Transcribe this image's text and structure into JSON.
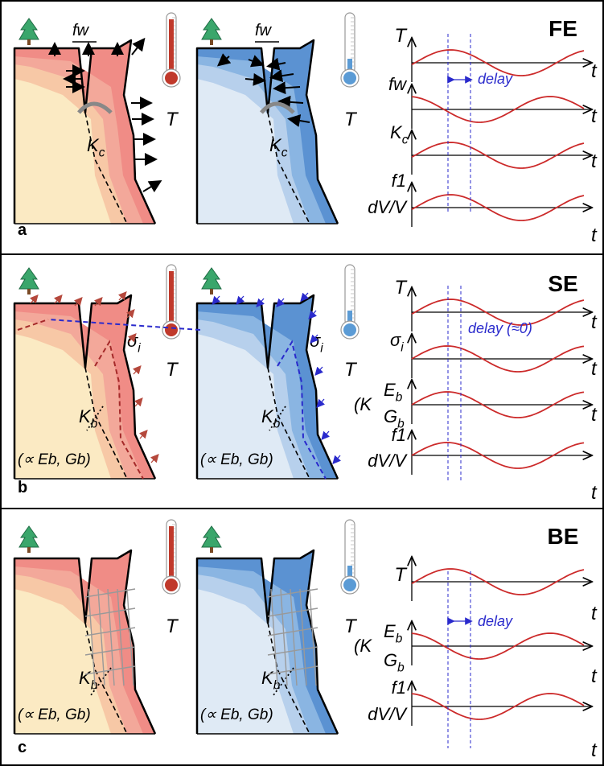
{
  "colors": {
    "warm": [
      "#fbeac3",
      "#f7c8a6",
      "#f3a89a",
      "#f08c86"
    ],
    "cold": [
      "#dfeaf5",
      "#b7d0ec",
      "#8ab5e2",
      "#5b92d2"
    ],
    "curve": "#cc2a2a",
    "marker": "#2a2acc",
    "thermo_hot": "#c0392b",
    "thermo_cold": "#5b9bd5",
    "tree": "#3aa66b"
  },
  "panels": [
    {
      "letter": "a",
      "title": "FE",
      "sketch_labels": {
        "width": "fw",
        "coupling": "Kc",
        "coupling_sub": "c",
        "temperature": "T"
      },
      "graphs": [
        {
          "label": "T",
          "axis": "t",
          "phase": "peak"
        },
        {
          "label": "fw",
          "axis": "t",
          "phase": "trough"
        },
        {
          "label": "Kc",
          "axis": "t",
          "phase": "peak"
        },
        {
          "label": "f1 / dV/V",
          "axis": "t",
          "phase": "peak"
        }
      ],
      "delay_label": "delay"
    },
    {
      "letter": "b",
      "title": "SE",
      "sketch_labels": {
        "stress": "σi",
        "coupling": "Kb",
        "coupling_sub": "b",
        "prop": "(∝ Eb, Gb)",
        "temperature": "T"
      },
      "graphs": [
        {
          "label": "T",
          "axis": "t",
          "phase": "peak"
        },
        {
          "label": "σi",
          "axis": "t",
          "phase": "peak"
        },
        {
          "label": "(Kb) Eb / Gb",
          "axis": "t",
          "phase": "peak"
        },
        {
          "label": "f1 / dV/V",
          "axis": "t",
          "phase": "peak"
        }
      ],
      "delay_label": "delay (≈0)"
    },
    {
      "letter": "c",
      "title": "BE",
      "sketch_labels": {
        "coupling": "Kb",
        "coupling_sub": "b",
        "prop": "(∝ Eb, Gb)",
        "temperature": "T"
      },
      "graphs": [
        {
          "label": "T",
          "axis": "t",
          "phase": "peak"
        },
        {
          "label": "(Kb) Eb / Gb",
          "axis": "t",
          "phase": "trough"
        },
        {
          "label": "f1 / dV/V",
          "axis": "t",
          "phase": "trough"
        }
      ],
      "delay_label": "delay"
    }
  ]
}
